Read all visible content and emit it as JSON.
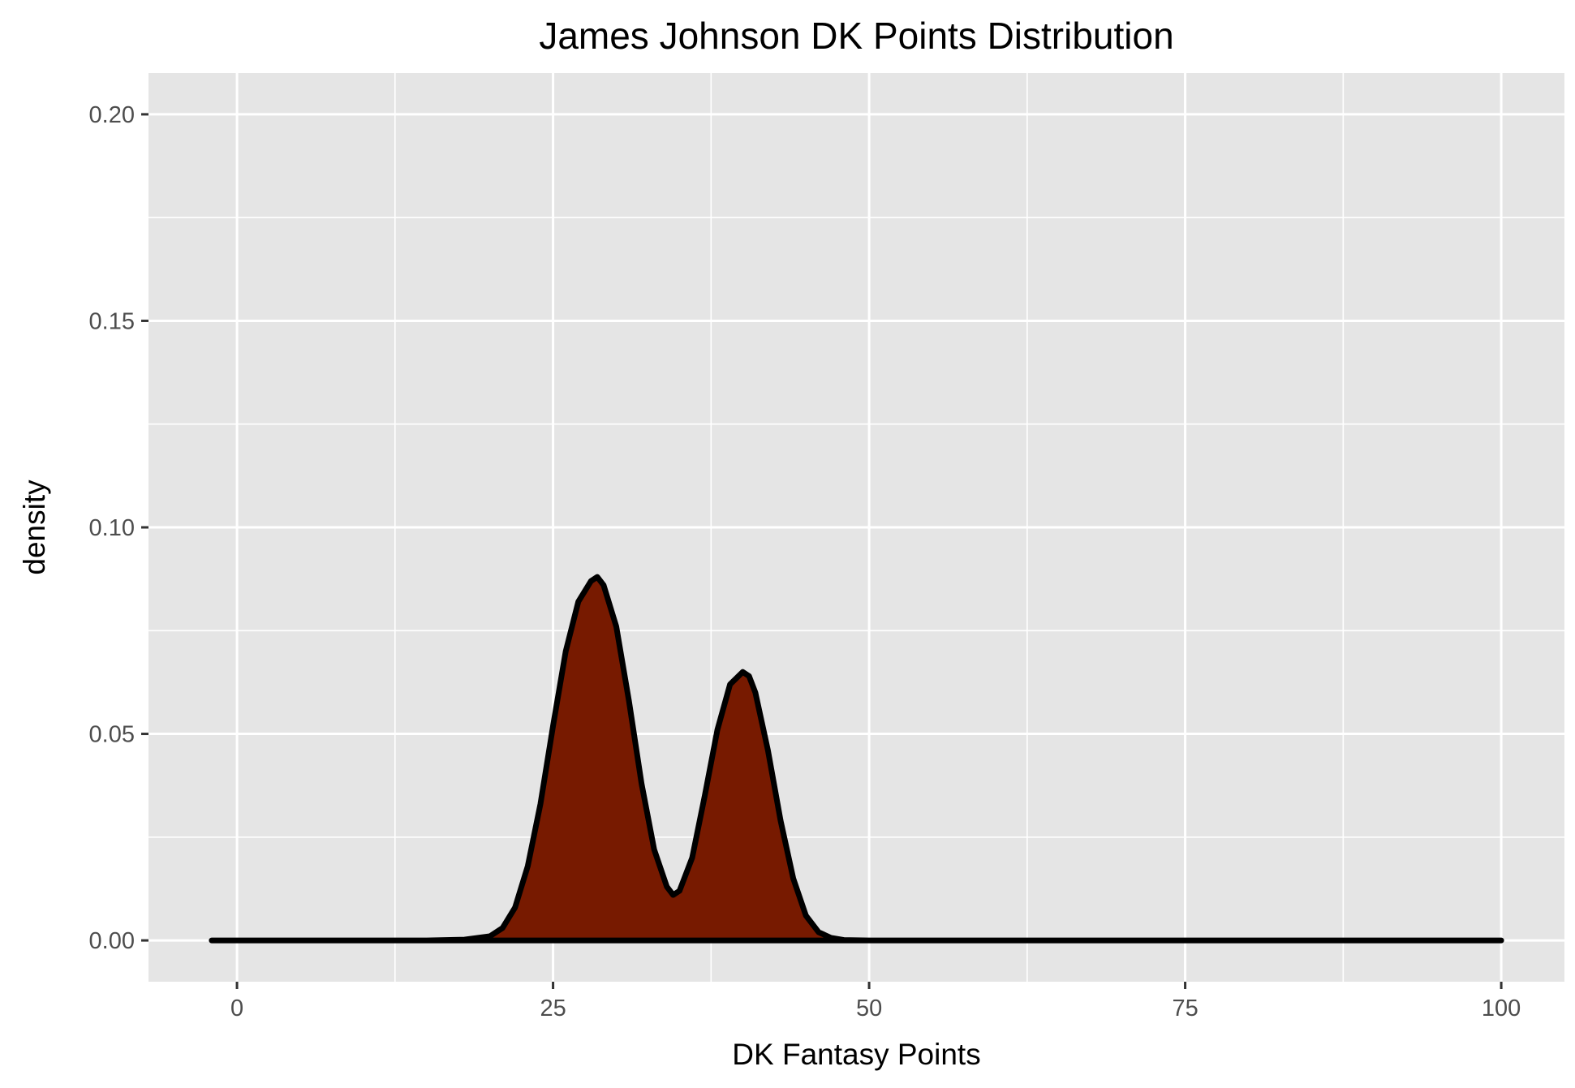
{
  "chart_data": {
    "type": "area",
    "title": "James Johnson DK Points Distribution",
    "xlabel": "DK Fantasy Points",
    "ylabel": "density",
    "xlim": [
      -7,
      105
    ],
    "ylim": [
      -0.01,
      0.21
    ],
    "x_ticks": [
      0,
      25,
      50,
      75,
      100
    ],
    "x_tick_labels": [
      "0",
      "25",
      "50",
      "75",
      "100"
    ],
    "y_ticks": [
      0.0,
      0.05,
      0.1,
      0.15,
      0.2
    ],
    "y_tick_labels": [
      "0.00",
      "0.05",
      "0.10",
      "0.15",
      "0.20"
    ],
    "grid": true,
    "legend": "none",
    "fill_color": "#771A00",
    "line_color": "#000000",
    "panel_color": "#E5E5E5",
    "series": [
      {
        "x": [
          -2,
          0,
          5,
          10,
          15,
          18,
          20,
          21,
          22,
          23,
          24,
          25,
          26,
          27,
          28,
          28.5,
          29,
          30,
          31,
          32,
          33,
          34,
          34.5,
          35,
          36,
          37,
          38,
          39,
          40,
          40.5,
          41,
          42,
          43,
          44,
          45,
          46,
          47,
          48,
          50,
          55,
          60,
          70,
          80,
          90,
          100
        ],
        "y": [
          0,
          0,
          0,
          0,
          0,
          0.0002,
          0.001,
          0.003,
          0.008,
          0.018,
          0.033,
          0.052,
          0.07,
          0.082,
          0.087,
          0.088,
          0.086,
          0.076,
          0.058,
          0.038,
          0.022,
          0.013,
          0.011,
          0.012,
          0.02,
          0.035,
          0.051,
          0.062,
          0.065,
          0.064,
          0.06,
          0.046,
          0.029,
          0.015,
          0.006,
          0.002,
          0.0006,
          0.0001,
          0,
          0,
          0,
          0,
          0,
          0,
          0
        ]
      }
    ]
  }
}
